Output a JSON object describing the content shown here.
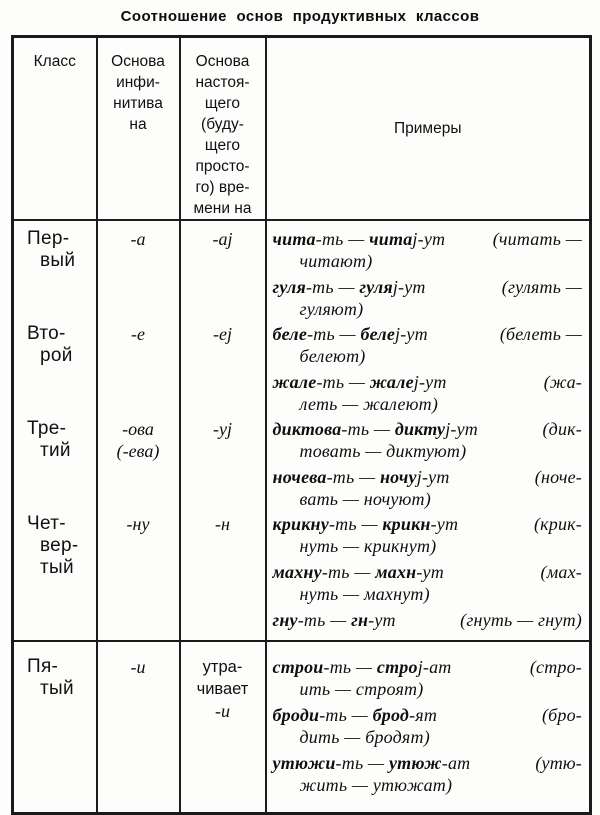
{
  "title": "Соотношение основ продуктивных классов",
  "table": {
    "columns": [
      {
        "key": "class",
        "lines": [
          "Класс"
        ]
      },
      {
        "key": "infinitive-stem",
        "lines": [
          "Основа",
          "инфи-",
          "нитива",
          "на"
        ]
      },
      {
        "key": "present-stem",
        "lines": [
          "Основа",
          "настоя-",
          "щего",
          "(буду-",
          "щего",
          "просто-",
          "го) вре-",
          "мени на"
        ]
      },
      {
        "key": "examples",
        "lines": [
          "Примеры"
        ]
      }
    ],
    "sections": [
      {
        "rows": [
          {
            "cls": [
              "Пер-",
              "вый"
            ],
            "inf": [
              {
                "t": "-а",
                "it": true
              }
            ],
            "pres": [
              {
                "t": "-аj",
                "it": true
              }
            ],
            "ex": [
              {
                "ls": [
                  {
                    "segs": [
                      {
                        "t": "чита",
                        "st": "b"
                      },
                      {
                        "t": "-ть — ",
                        "st": "i"
                      },
                      {
                        "t": "чита",
                        "st": "b"
                      },
                      {
                        "t": "j-ут",
                        "st": "i"
                      }
                    ],
                    "right": [
                      {
                        "t": "(читать —",
                        "st": "i"
                      }
                    ]
                  },
                  {
                    "segs": [
                      {
                        "t": "читают)",
                        "st": "i"
                      }
                    ],
                    "ind": true
                  }
                ]
              },
              {
                "ls": [
                  {
                    "segs": [
                      {
                        "t": "гуля",
                        "st": "b"
                      },
                      {
                        "t": "-ть — ",
                        "st": "i"
                      },
                      {
                        "t": "гуля",
                        "st": "b"
                      },
                      {
                        "t": "j-ут",
                        "st": "i"
                      }
                    ],
                    "right": [
                      {
                        "t": "(гулять —",
                        "st": "i"
                      }
                    ]
                  },
                  {
                    "segs": [
                      {
                        "t": "гуляют)",
                        "st": "i"
                      }
                    ],
                    "ind": true
                  }
                ]
              }
            ]
          },
          {
            "cls": [
              "Вто-",
              "рой"
            ],
            "inf": [
              {
                "t": "-е",
                "it": true
              }
            ],
            "pres": [
              {
                "t": "-еj",
                "it": true
              }
            ],
            "ex": [
              {
                "ls": [
                  {
                    "segs": [
                      {
                        "t": "беле",
                        "st": "b"
                      },
                      {
                        "t": "-ть — ",
                        "st": "i"
                      },
                      {
                        "t": "беле",
                        "st": "b"
                      },
                      {
                        "t": "j-ут",
                        "st": "i"
                      }
                    ],
                    "right": [
                      {
                        "t": "(белеть —",
                        "st": "i"
                      }
                    ]
                  },
                  {
                    "segs": [
                      {
                        "t": "белеют)",
                        "st": "i"
                      }
                    ],
                    "ind": true
                  }
                ]
              },
              {
                "ls": [
                  {
                    "segs": [
                      {
                        "t": "жале",
                        "st": "b"
                      },
                      {
                        "t": "-ть — ",
                        "st": "i"
                      },
                      {
                        "t": "жале",
                        "st": "b"
                      },
                      {
                        "t": "j-ут",
                        "st": "i"
                      }
                    ],
                    "right": [
                      {
                        "t": "(жа-",
                        "st": "i"
                      }
                    ]
                  },
                  {
                    "segs": [
                      {
                        "t": "леть — жалеют)",
                        "st": "i"
                      }
                    ],
                    "ind": true
                  }
                ]
              }
            ]
          },
          {
            "cls": [
              "Тре-",
              "тий"
            ],
            "inf": [
              {
                "t": "-ова",
                "it": true
              },
              {
                "t": "(-ева)",
                "it": true
              }
            ],
            "pres": [
              {
                "t": "-уj",
                "it": true
              }
            ],
            "ex": [
              {
                "ls": [
                  {
                    "segs": [
                      {
                        "t": "диктова",
                        "st": "b"
                      },
                      {
                        "t": "-ть — ",
                        "st": "i"
                      },
                      {
                        "t": "дикту",
                        "st": "b"
                      },
                      {
                        "t": "j-ут",
                        "st": "i"
                      }
                    ],
                    "right": [
                      {
                        "t": "(дик-",
                        "st": "i"
                      }
                    ]
                  },
                  {
                    "segs": [
                      {
                        "t": "товать — диктуют)",
                        "st": "i"
                      }
                    ],
                    "ind": true
                  }
                ]
              },
              {
                "ls": [
                  {
                    "segs": [
                      {
                        "t": "ночева",
                        "st": "b"
                      },
                      {
                        "t": "-ть — ",
                        "st": "i"
                      },
                      {
                        "t": "ночу",
                        "st": "b"
                      },
                      {
                        "t": "j-ут",
                        "st": "i"
                      }
                    ],
                    "right": [
                      {
                        "t": "(ноче-",
                        "st": "i"
                      }
                    ]
                  },
                  {
                    "segs": [
                      {
                        "t": "вать — ночуют)",
                        "st": "i"
                      }
                    ],
                    "ind": true
                  }
                ]
              }
            ]
          },
          {
            "cls": [
              "Чет-",
              "вер-",
              "тый"
            ],
            "inf": [
              {
                "t": "-ну",
                "it": true
              }
            ],
            "pres": [
              {
                "t": "-н",
                "it": true
              }
            ],
            "ex": [
              {
                "ls": [
                  {
                    "segs": [
                      {
                        "t": "крикну",
                        "st": "b"
                      },
                      {
                        "t": "-ть — ",
                        "st": "i"
                      },
                      {
                        "t": "крикн",
                        "st": "b"
                      },
                      {
                        "t": "-ут",
                        "st": "i"
                      }
                    ],
                    "right": [
                      {
                        "t": "(крик-",
                        "st": "i"
                      }
                    ]
                  },
                  {
                    "segs": [
                      {
                        "t": "нуть — крикнут)",
                        "st": "i"
                      }
                    ],
                    "ind": true
                  }
                ]
              },
              {
                "ls": [
                  {
                    "segs": [
                      {
                        "t": "махну",
                        "st": "b"
                      },
                      {
                        "t": "-ть — ",
                        "st": "i"
                      },
                      {
                        "t": "махн",
                        "st": "b"
                      },
                      {
                        "t": "-ут",
                        "st": "i"
                      }
                    ],
                    "right": [
                      {
                        "t": "(мах-",
                        "st": "i"
                      }
                    ]
                  },
                  {
                    "segs": [
                      {
                        "t": "нуть — махнут)",
                        "st": "i"
                      }
                    ],
                    "ind": true
                  }
                ]
              },
              {
                "ls": [
                  {
                    "segs": [
                      {
                        "t": "гну",
                        "st": "b"
                      },
                      {
                        "t": "-ть — ",
                        "st": "i"
                      },
                      {
                        "t": "гн",
                        "st": "b"
                      },
                      {
                        "t": "-ут",
                        "st": "i"
                      }
                    ],
                    "right": [
                      {
                        "t": "(гнуть — гнут)",
                        "st": "i"
                      }
                    ]
                  }
                ]
              }
            ]
          }
        ]
      },
      {
        "rows": [
          {
            "cls": [
              "Пя-",
              "тый"
            ],
            "inf": [
              {
                "t": "-и",
                "it": true
              }
            ],
            "pres": [
              {
                "t": "утра-",
                "it": false
              },
              {
                "t": "чивает",
                "it": false
              },
              {
                "t": "-и",
                "it": true
              }
            ],
            "ex": [
              {
                "ls": [
                  {
                    "segs": [
                      {
                        "t": "строи",
                        "st": "b"
                      },
                      {
                        "t": "-ть — ",
                        "st": "i"
                      },
                      {
                        "t": "стро",
                        "st": "b"
                      },
                      {
                        "t": "j-ат",
                        "st": "i"
                      }
                    ],
                    "right": [
                      {
                        "t": "(стро-",
                        "st": "i"
                      }
                    ]
                  },
                  {
                    "segs": [
                      {
                        "t": "ить — строят)",
                        "st": "i"
                      }
                    ],
                    "ind": true
                  }
                ]
              },
              {
                "ls": [
                  {
                    "segs": [
                      {
                        "t": "броди",
                        "st": "b"
                      },
                      {
                        "t": "-ть — ",
                        "st": "i"
                      },
                      {
                        "t": "брод",
                        "st": "b"
                      },
                      {
                        "t": "-ят",
                        "st": "i"
                      }
                    ],
                    "right": [
                      {
                        "t": "(бро-",
                        "st": "i"
                      }
                    ]
                  },
                  {
                    "segs": [
                      {
                        "t": "дить — бродят)",
                        "st": "i"
                      }
                    ],
                    "ind": true
                  }
                ]
              },
              {
                "ls": [
                  {
                    "segs": [
                      {
                        "t": "утюжи",
                        "st": "b"
                      },
                      {
                        "t": "-ть — ",
                        "st": "i"
                      },
                      {
                        "t": "утюж",
                        "st": "b"
                      },
                      {
                        "t": "-ат",
                        "st": "i"
                      }
                    ],
                    "right": [
                      {
                        "t": "(утю-",
                        "st": "i"
                      }
                    ]
                  },
                  {
                    "segs": [
                      {
                        "t": "жить — утюжат)",
                        "st": "i"
                      }
                    ],
                    "ind": true
                  }
                ]
              }
            ]
          }
        ]
      }
    ]
  }
}
